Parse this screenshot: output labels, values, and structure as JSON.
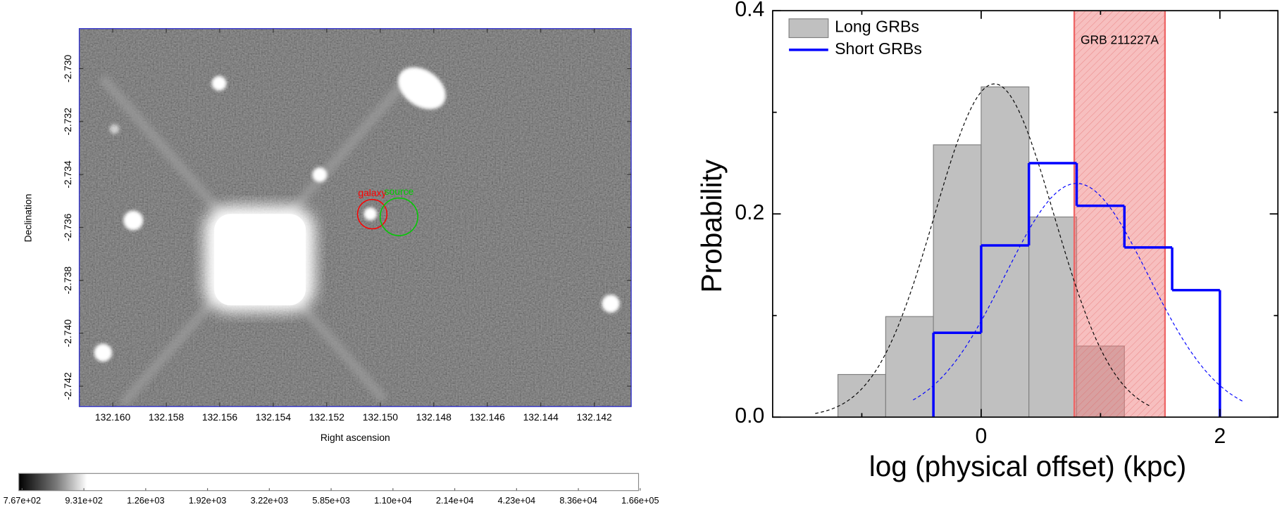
{
  "chart_data": [
    {
      "type": "image",
      "xlabel": "Right ascension",
      "ylabel": "Declination",
      "xlim": [
        132.16125,
        132.14062
      ],
      "ylim": [
        -2.74277,
        -2.72849
      ],
      "xticks": [
        {
          "value": 132.16,
          "label": "132.160"
        },
        132.158,
        132.156,
        132.154,
        132.152,
        {
          "value": 132.15,
          "label": "132.150"
        },
        132.148,
        132.146,
        132.144,
        132.142
      ],
      "yticks": [
        {
          "value": -2.73,
          "label": "-2.730"
        },
        -2.732,
        -2.734,
        -2.736,
        -2.738,
        {
          "value": -2.74,
          "label": "-2.740"
        },
        -2.742
      ],
      "markers": [
        {
          "label": "galaxy",
          "x": 132.1503,
          "y": -2.7355,
          "color": "#ff0000"
        },
        {
          "label": "source",
          "x": 132.1493,
          "y": -2.7356,
          "color": "#00cc00"
        }
      ],
      "colorbar": {
        "ticks": [
          {
            "value": 767,
            "label": "7.67e+02"
          },
          {
            "value": 931,
            "label": "9.31e+02"
          },
          {
            "value": 1260,
            "label": "1.26e+03"
          },
          {
            "value": 1920,
            "label": "1.92e+03"
          },
          {
            "value": 3220,
            "label": "3.22e+03"
          },
          {
            "value": 5850,
            "label": "5.85e+03"
          },
          {
            "value": 11000,
            "label": "1.10e+04"
          },
          {
            "value": 21400,
            "label": "2.14e+04"
          },
          {
            "value": 42300,
            "label": "4.23e+04"
          },
          {
            "value": 83600,
            "label": "8.36e+04"
          },
          {
            "value": 166000,
            "label": "1.66e+05"
          }
        ]
      }
    },
    {
      "type": "histogram",
      "xlabel": "log (physical offset) (kpc)",
      "ylabel": "Probability",
      "xlim": [
        -1.747,
        2.486
      ],
      "ylim": [
        0,
        0.4
      ],
      "xticks": [
        0,
        2
      ],
      "xminor": [
        -1,
        1
      ],
      "yticks": [
        {
          "value": 0,
          "label": "0.0"
        },
        0.2,
        0.4
      ],
      "yminor": [
        0.1,
        0.3
      ],
      "legend": "upper left",
      "series": [
        {
          "name": "Long GRBs",
          "style": "filled",
          "color": "#c0c0c0",
          "edge": "#808080",
          "bins": [
            -1.2,
            -0.8,
            -0.4,
            0,
            0.4,
            0.8,
            1.2
          ],
          "values": [
            0.042,
            0.099,
            0.268,
            0.325,
            0.197,
            0.07
          ],
          "fit": {
            "mean": 0.11,
            "sigma": 0.5,
            "amplitude": 0.328,
            "range": [
              -1.39,
              1.41
            ],
            "color": "#000000"
          }
        },
        {
          "name": "Short GRBs",
          "style": "step",
          "color": "#0000ff",
          "bins": [
            -0.4,
            0,
            0.4,
            0.8,
            1.2,
            1.6,
            2
          ],
          "values": [
            0.083,
            0.169,
            0.25,
            0.208,
            0.167,
            0.125
          ],
          "fit": {
            "mean": 0.8,
            "sigma": 0.6,
            "amplitude": 0.23,
            "range": [
              -0.57,
              2.2
            ],
            "color": "#0000ff"
          }
        }
      ],
      "band": {
        "label": "GRB 211227A",
        "x": [
          0.78,
          1.54
        ],
        "color": "#f08080"
      }
    }
  ]
}
